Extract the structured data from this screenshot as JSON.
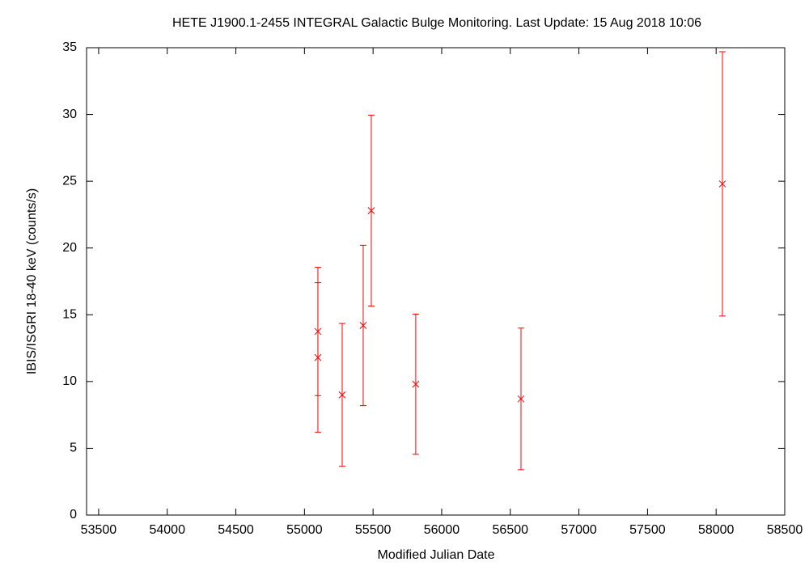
{
  "chart_data": {
    "type": "scatter",
    "title": "HETE J1900.1-2455   INTEGRAL Galactic Bulge Monitoring.  Last Update: 15 Aug 2018 10:06",
    "x_label": "Modified Julian Date",
    "y_label": "IBIS/ISGRI 18-40 keV (counts/s)",
    "series": [
      {
        "color": "#ff0000",
        "x": [
          55098,
          55098,
          55275,
          55428,
          55487,
          55811,
          56578,
          58046
        ],
        "values": [
          13.75,
          11.8,
          9.0,
          14.2,
          22.8,
          9.8,
          8.7,
          24.8
        ],
        "errors": [
          4.8,
          5.6,
          5.35,
          6.0,
          7.15,
          5.25,
          5.3,
          9.9
        ]
      }
    ],
    "xlim": [
      53412,
      58500
    ],
    "xticks": [
      53500,
      54000,
      54500,
      55000,
      55500,
      56000,
      56500,
      57000,
      57500,
      58000,
      58500
    ],
    "ylim": [
      0,
      35
    ],
    "yticks": [
      0,
      5,
      10,
      15,
      20,
      25,
      30,
      35
    ]
  }
}
